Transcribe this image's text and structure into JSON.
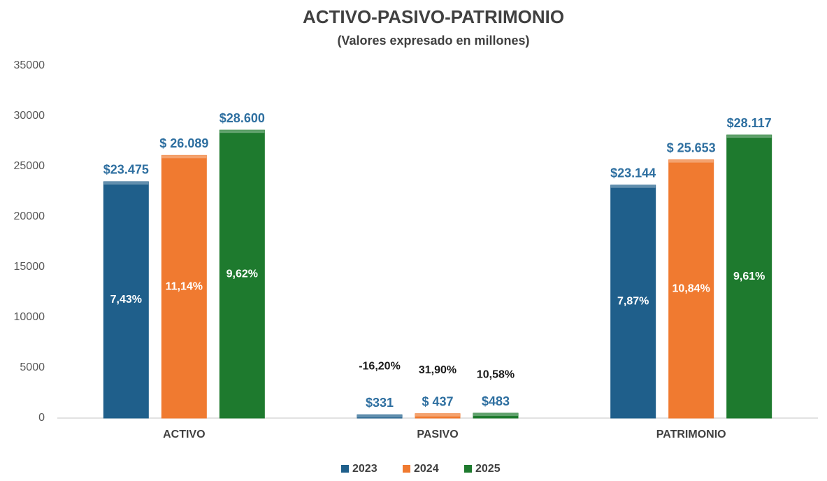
{
  "chart_data": {
    "type": "bar",
    "title": "ACTIVO-PASIVO-PATRIMONIO",
    "subtitle": "(Valores expresado en millones)",
    "categories": [
      "ACTIVO",
      "PASIVO",
      "PATRIMONIO"
    ],
    "series": [
      {
        "name": "2023",
        "color": "#1f5f8b",
        "values": [
          23475,
          331,
          23144
        ],
        "value_labels": [
          "$23.475",
          "$331",
          "$23.144"
        ],
        "annotations": [
          "7,43%",
          "-16,20%",
          "7,87%"
        ]
      },
      {
        "name": "2024",
        "color": "#f07a30",
        "values": [
          26089,
          437,
          25653
        ],
        "value_labels": [
          "$ 26.089",
          "$ 437",
          "$ 25.653"
        ],
        "annotations": [
          "11,14%",
          "31,90%",
          "10,84%"
        ]
      },
      {
        "name": "2025",
        "color": "#1e7a2e",
        "values": [
          28600,
          483,
          28117
        ],
        "value_labels": [
          "$28.600",
          "$483",
          "$28.117"
        ],
        "annotations": [
          "9,62%",
          "10,58%",
          "9,61%"
        ]
      }
    ],
    "ylim": [
      0,
      35000
    ],
    "yticks": [
      0,
      5000,
      10000,
      15000,
      20000,
      25000,
      30000,
      35000
    ],
    "grid": false,
    "legend": "bottom"
  }
}
